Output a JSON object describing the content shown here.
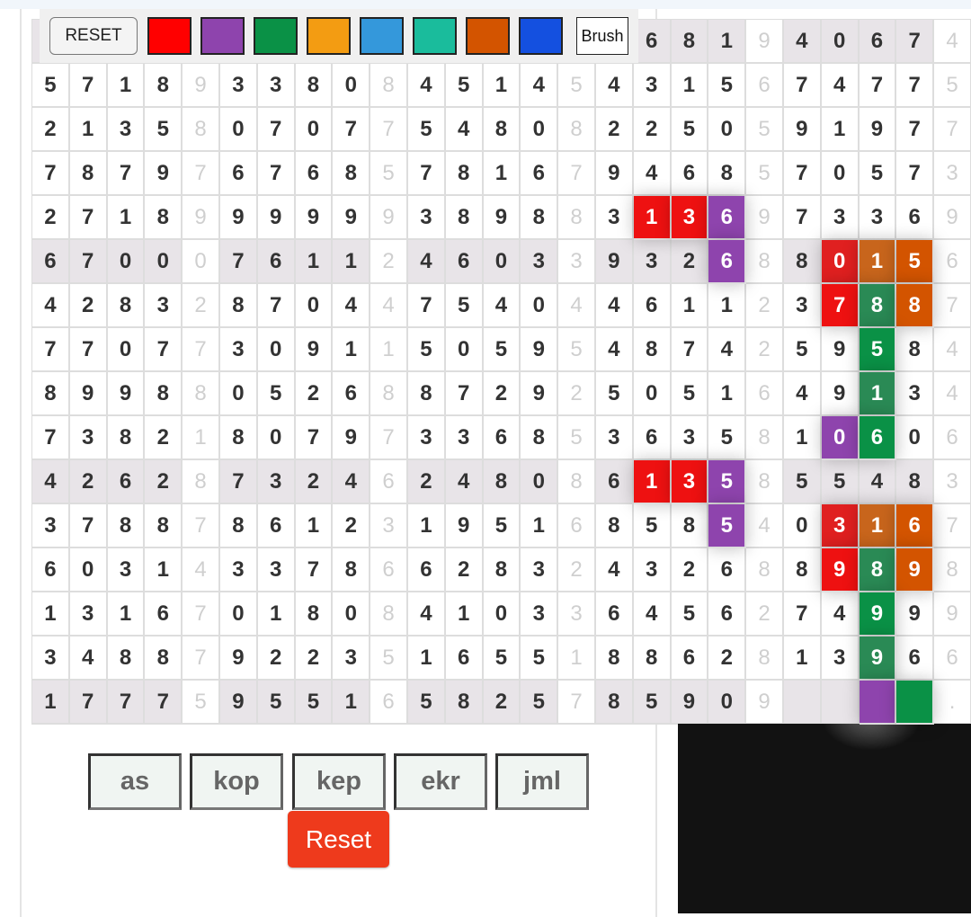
{
  "toolbar": {
    "reset_label": "RESET",
    "brush_label": "Brush",
    "swatches": [
      "#ff0000",
      "#8e44ad",
      "#0a9146",
      "#f39c12",
      "#3498db",
      "#1abc9c",
      "#d35400",
      "#1450e0"
    ]
  },
  "grid": {
    "check_columns": [
      4,
      9,
      14,
      19,
      24
    ],
    "shaded_rows": [
      0,
      5,
      10,
      15
    ],
    "rows": [
      [
        "",
        "",
        "",
        "",
        "",
        "",
        "",
        "",
        "",
        "",
        "",
        "",
        "",
        "",
        "",
        "",
        "6",
        "8",
        "1",
        "9",
        "4",
        "0",
        "6",
        "7",
        "4"
      ],
      [
        "5",
        "7",
        "1",
        "8",
        "9",
        "3",
        "3",
        "8",
        "0",
        "8",
        "4",
        "5",
        "1",
        "4",
        "5",
        "4",
        "3",
        "1",
        "5",
        "6",
        "7",
        "4",
        "7",
        "7",
        "5"
      ],
      [
        "2",
        "1",
        "3",
        "5",
        "8",
        "0",
        "7",
        "0",
        "7",
        "7",
        "5",
        "4",
        "8",
        "0",
        "8",
        "2",
        "2",
        "5",
        "0",
        "5",
        "9",
        "1",
        "9",
        "7",
        "7"
      ],
      [
        "7",
        "8",
        "7",
        "9",
        "7",
        "6",
        "7",
        "6",
        "8",
        "5",
        "7",
        "8",
        "1",
        "6",
        "7",
        "9",
        "4",
        "6",
        "8",
        "5",
        "7",
        "0",
        "5",
        "7",
        "3"
      ],
      [
        "2",
        "7",
        "1",
        "8",
        "9",
        "9",
        "9",
        "9",
        "9",
        "9",
        "3",
        "8",
        "9",
        "8",
        "8",
        "3",
        "1",
        "3",
        "6",
        "9",
        "7",
        "3",
        "3",
        "6",
        "9"
      ],
      [
        "6",
        "7",
        "0",
        "0",
        "0",
        "7",
        "6",
        "1",
        "1",
        "2",
        "4",
        "6",
        "0",
        "3",
        "3",
        "9",
        "3",
        "2",
        "6",
        "8",
        "8",
        "0",
        "1",
        "5",
        "6"
      ],
      [
        "4",
        "2",
        "8",
        "3",
        "2",
        "8",
        "7",
        "0",
        "4",
        "4",
        "7",
        "5",
        "4",
        "0",
        "4",
        "4",
        "6",
        "1",
        "1",
        "2",
        "3",
        "7",
        "8",
        "8",
        "7"
      ],
      [
        "7",
        "7",
        "0",
        "7",
        "7",
        "3",
        "0",
        "9",
        "1",
        "1",
        "5",
        "0",
        "5",
        "9",
        "5",
        "4",
        "8",
        "7",
        "4",
        "2",
        "5",
        "9",
        "5",
        "8",
        "4"
      ],
      [
        "8",
        "9",
        "9",
        "8",
        "8",
        "0",
        "5",
        "2",
        "6",
        "8",
        "8",
        "7",
        "2",
        "9",
        "2",
        "5",
        "0",
        "5",
        "1",
        "6",
        "4",
        "9",
        "1",
        "3",
        "4"
      ],
      [
        "7",
        "3",
        "8",
        "2",
        "1",
        "8",
        "0",
        "7",
        "9",
        "7",
        "3",
        "3",
        "6",
        "8",
        "5",
        "3",
        "6",
        "3",
        "5",
        "8",
        "1",
        "0",
        "6",
        "0",
        "6"
      ],
      [
        "4",
        "2",
        "6",
        "2",
        "8",
        "7",
        "3",
        "2",
        "4",
        "6",
        "2",
        "4",
        "8",
        "0",
        "8",
        "6",
        "1",
        "3",
        "5",
        "8",
        "5",
        "5",
        "4",
        "8",
        "3"
      ],
      [
        "3",
        "7",
        "8",
        "8",
        "7",
        "8",
        "6",
        "1",
        "2",
        "3",
        "1",
        "9",
        "5",
        "1",
        "6",
        "8",
        "5",
        "8",
        "5",
        "4",
        "0",
        "3",
        "1",
        "6",
        "7"
      ],
      [
        "6",
        "0",
        "3",
        "1",
        "4",
        "3",
        "3",
        "7",
        "8",
        "6",
        "6",
        "2",
        "8",
        "3",
        "2",
        "4",
        "3",
        "2",
        "6",
        "8",
        "8",
        "9",
        "8",
        "9",
        "8"
      ],
      [
        "1",
        "3",
        "1",
        "6",
        "7",
        "0",
        "1",
        "8",
        "0",
        "8",
        "4",
        "1",
        "0",
        "3",
        "3",
        "6",
        "4",
        "5",
        "6",
        "2",
        "7",
        "4",
        "9",
        "9",
        "9"
      ],
      [
        "3",
        "4",
        "8",
        "8",
        "7",
        "9",
        "2",
        "2",
        "3",
        "5",
        "1",
        "6",
        "5",
        "5",
        "1",
        "8",
        "8",
        "6",
        "2",
        "8",
        "1",
        "3",
        "9",
        "6",
        "6"
      ],
      [
        "1",
        "7",
        "7",
        "7",
        "5",
        "9",
        "5",
        "5",
        "1",
        "6",
        "5",
        "8",
        "2",
        "5",
        "7",
        "8",
        "5",
        "9",
        "0",
        "9",
        "",
        "",
        "",
        "",
        "."
      ]
    ],
    "highlights": [
      {
        "row": 4,
        "col": 16,
        "color": "#ee1111"
      },
      {
        "row": 4,
        "col": 17,
        "color": "#ee1111"
      },
      {
        "row": 4,
        "col": 18,
        "color": "#8e44ad"
      },
      {
        "row": 5,
        "col": 18,
        "color": "#8e44ad"
      },
      {
        "row": 5,
        "col": 21,
        "color": "#e02020"
      },
      {
        "row": 5,
        "col": 22,
        "color": "#c8651c"
      },
      {
        "row": 5,
        "col": 23,
        "color": "#d35400"
      },
      {
        "row": 6,
        "col": 21,
        "color": "#ee1111"
      },
      {
        "row": 6,
        "col": 22,
        "color": "#2a8a55"
      },
      {
        "row": 6,
        "col": 23,
        "color": "#d35400"
      },
      {
        "row": 7,
        "col": 22,
        "color": "#0a9146"
      },
      {
        "row": 8,
        "col": 22,
        "color": "#2a8a55"
      },
      {
        "row": 9,
        "col": 21,
        "color": "#8e44ad"
      },
      {
        "row": 9,
        "col": 22,
        "color": "#0a9146"
      },
      {
        "row": 10,
        "col": 16,
        "color": "#ee1111"
      },
      {
        "row": 10,
        "col": 17,
        "color": "#ee1111"
      },
      {
        "row": 10,
        "col": 18,
        "color": "#8e44ad"
      },
      {
        "row": 11,
        "col": 18,
        "color": "#8e44ad"
      },
      {
        "row": 11,
        "col": 21,
        "color": "#e02020"
      },
      {
        "row": 11,
        "col": 22,
        "color": "#c8651c"
      },
      {
        "row": 11,
        "col": 23,
        "color": "#d35400"
      },
      {
        "row": 12,
        "col": 21,
        "color": "#ee1111"
      },
      {
        "row": 12,
        "col": 22,
        "color": "#2a8a55"
      },
      {
        "row": 12,
        "col": 23,
        "color": "#d35400"
      },
      {
        "row": 13,
        "col": 22,
        "color": "#0a9146"
      },
      {
        "row": 14,
        "col": 22,
        "color": "#2a8a55"
      },
      {
        "row": 15,
        "col": 22,
        "color": "#8e44ad"
      },
      {
        "row": 15,
        "col": 23,
        "color": "#0a9146"
      }
    ]
  },
  "buttons": {
    "ops": [
      "as",
      "kop",
      "kep",
      "ekr",
      "jml"
    ],
    "reset_label": "Reset"
  }
}
